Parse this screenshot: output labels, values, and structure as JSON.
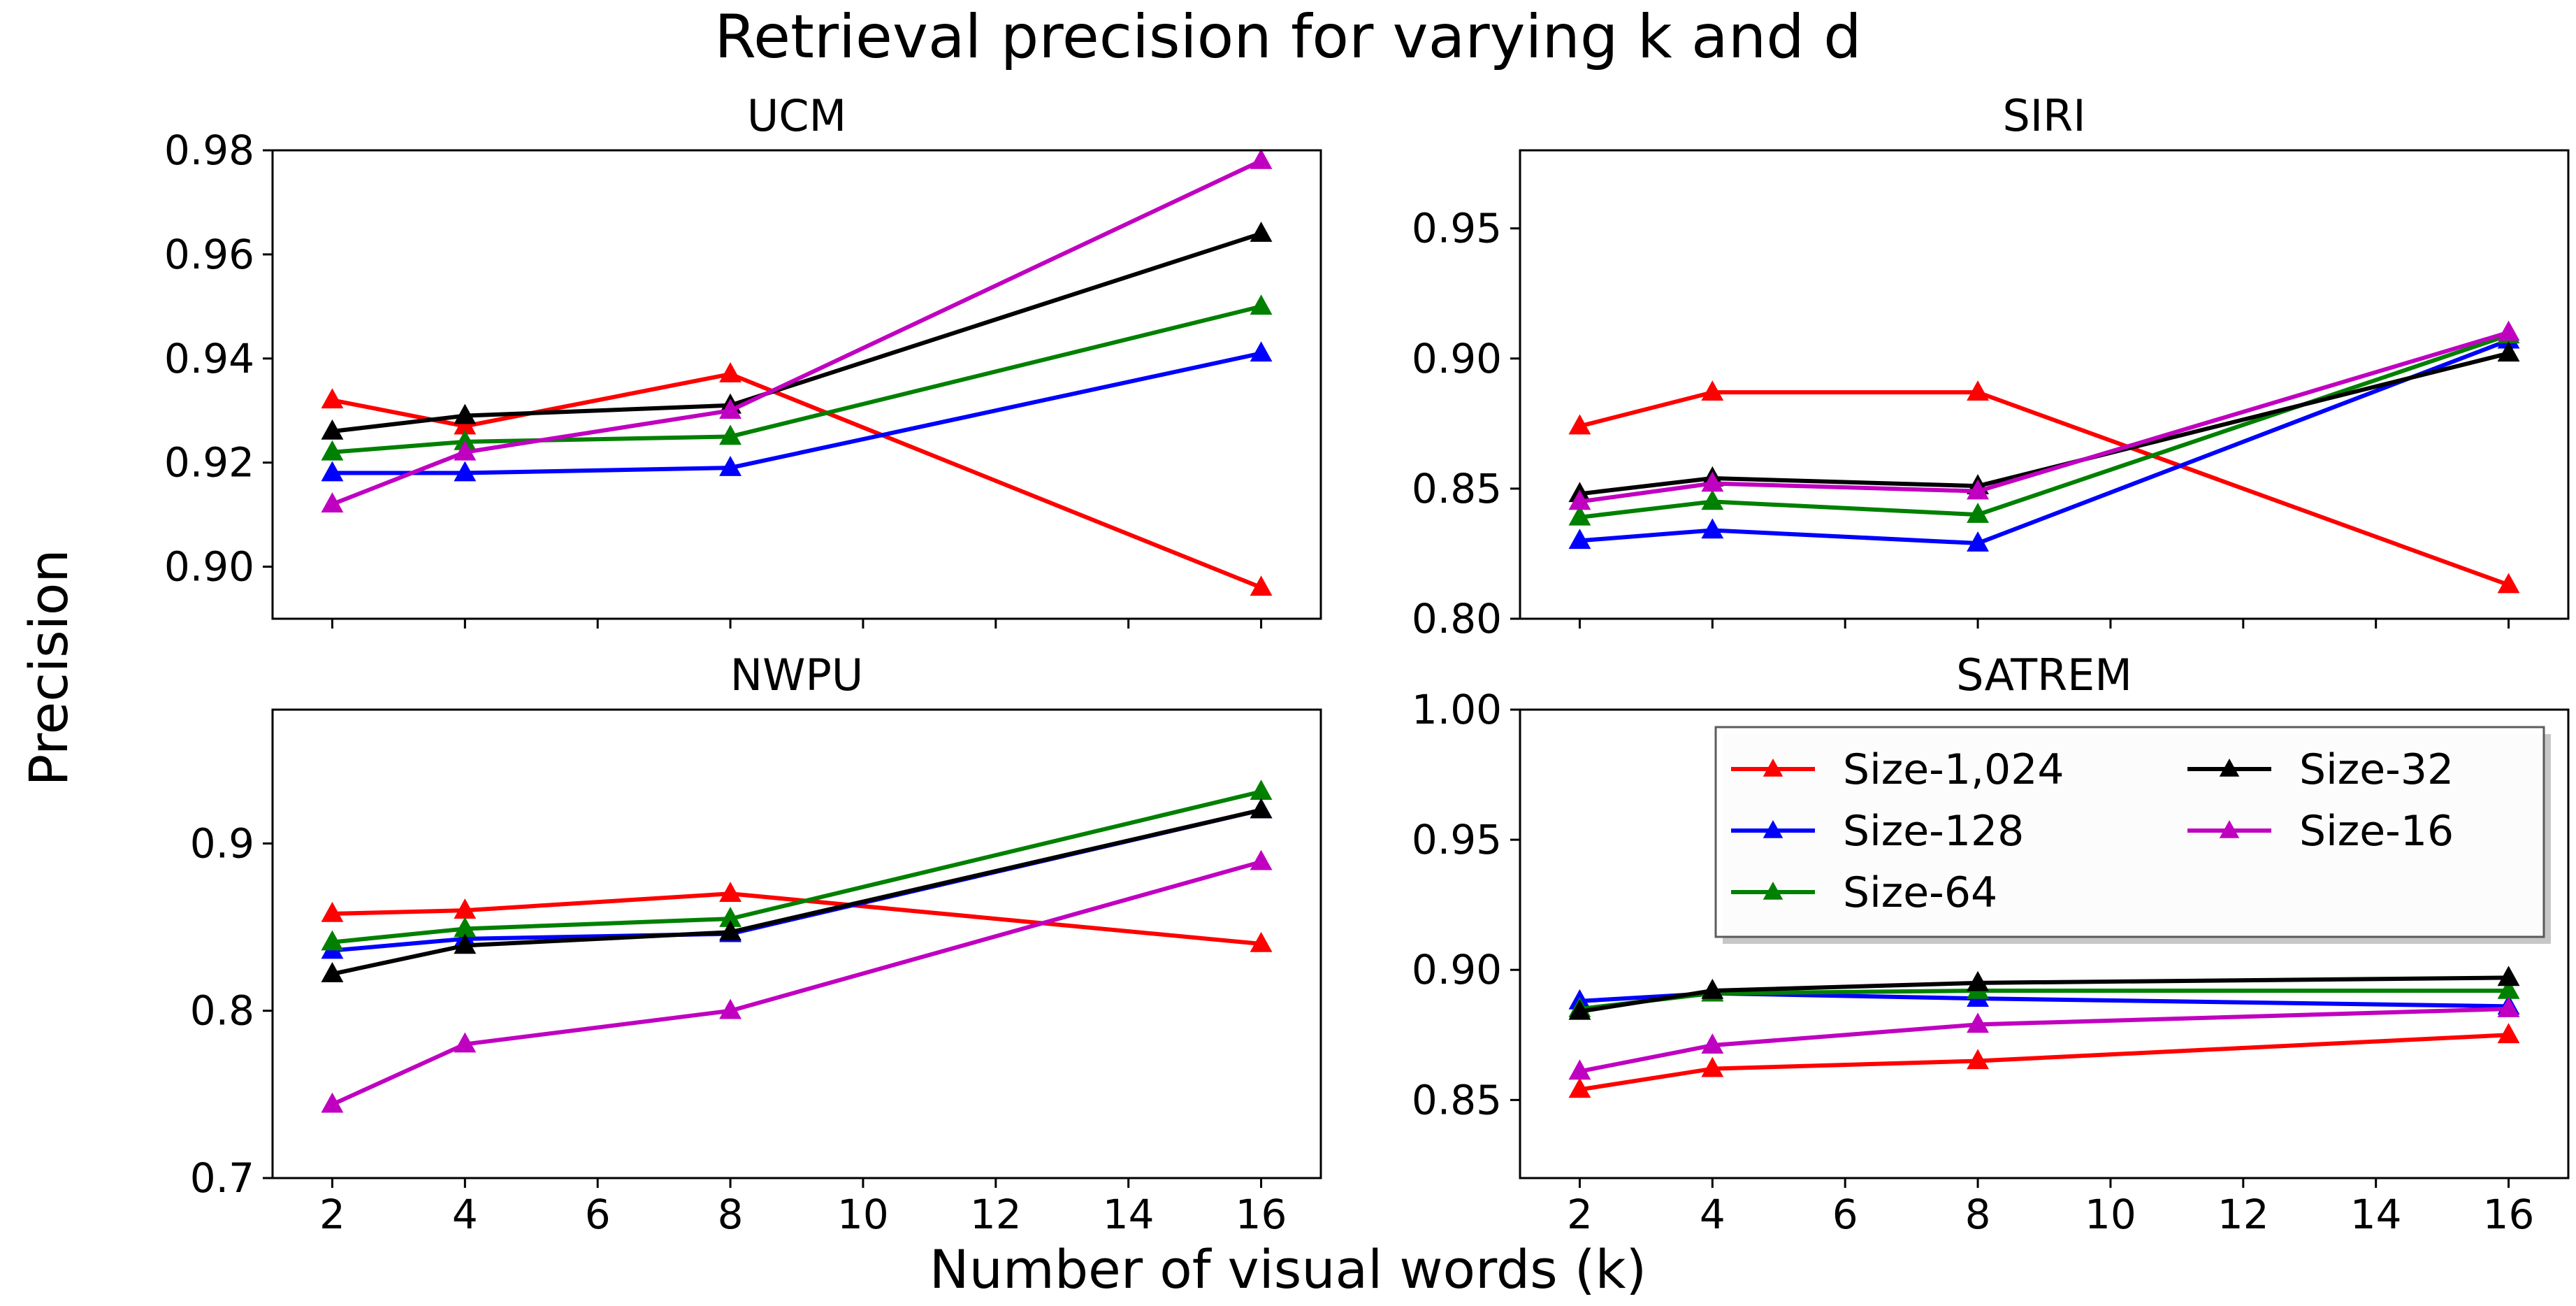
{
  "figure": {
    "suptitle": "Retrieval precision for varying k and d",
    "xlabel": "Number of visual words (k)",
    "ylabel": "Precision"
  },
  "legend": {
    "placement": "top-right of SATREM panel, 2 columns",
    "entries": [
      "Size-1,024",
      "Size-128",
      "Size-64",
      "Size-32",
      "Size-16"
    ]
  },
  "series_colors": {
    "Size-1,024": "#ff0000",
    "Size-128": "#0000ff",
    "Size-64": "#008000",
    "Size-32": "#000000",
    "Size-16": "#c000c0"
  },
  "chart_data": [
    {
      "type": "line",
      "title": "UCM",
      "xlabel": "",
      "ylabel": "",
      "x": [
        2,
        4,
        8,
        16
      ],
      "xlim": [
        1.1,
        16.9
      ],
      "ylim": [
        0.89,
        0.98
      ],
      "xticks": [
        2,
        4,
        6,
        8,
        10,
        12,
        14,
        16
      ],
      "yticks": [
        0.9,
        0.92,
        0.94,
        0.96,
        0.98
      ],
      "ytick_labels": [
        "0.90",
        "0.92",
        "0.94",
        "0.96",
        "0.98"
      ],
      "show_xtick_labels": false,
      "series": [
        {
          "name": "Size-1,024",
          "values": [
            0.932,
            0.927,
            0.937,
            0.896
          ]
        },
        {
          "name": "Size-128",
          "values": [
            0.918,
            0.918,
            0.919,
            0.941
          ]
        },
        {
          "name": "Size-64",
          "values": [
            0.922,
            0.924,
            0.925,
            0.95
          ]
        },
        {
          "name": "Size-32",
          "values": [
            0.926,
            0.929,
            0.931,
            0.964
          ]
        },
        {
          "name": "Size-16",
          "values": [
            0.912,
            0.922,
            0.93,
            0.978
          ]
        }
      ]
    },
    {
      "type": "line",
      "title": "SIRI",
      "xlabel": "",
      "ylabel": "",
      "x": [
        2,
        4,
        8,
        16
      ],
      "xlim": [
        1.1,
        16.9
      ],
      "ylim": [
        0.8,
        0.98
      ],
      "xticks": [
        2,
        4,
        6,
        8,
        10,
        12,
        14,
        16
      ],
      "yticks": [
        0.8,
        0.85,
        0.9,
        0.95
      ],
      "ytick_labels": [
        "0.80",
        "0.85",
        "0.90",
        "0.95"
      ],
      "show_xtick_labels": false,
      "series": [
        {
          "name": "Size-1,024",
          "values": [
            0.874,
            0.887,
            0.887,
            0.813
          ]
        },
        {
          "name": "Size-128",
          "values": [
            0.83,
            0.834,
            0.829,
            0.907
          ]
        },
        {
          "name": "Size-64",
          "values": [
            0.839,
            0.845,
            0.84,
            0.909
          ]
        },
        {
          "name": "Size-32",
          "values": [
            0.848,
            0.854,
            0.851,
            0.902
          ]
        },
        {
          "name": "Size-16",
          "values": [
            0.845,
            0.852,
            0.849,
            0.91
          ]
        }
      ]
    },
    {
      "type": "line",
      "title": "NWPU",
      "xlabel": "",
      "ylabel": "",
      "x": [
        2,
        4,
        8,
        16
      ],
      "xlim": [
        1.1,
        16.9
      ],
      "ylim": [
        0.7,
        0.98
      ],
      "xticks": [
        2,
        4,
        6,
        8,
        10,
        12,
        14,
        16
      ],
      "yticks": [
        0.7,
        0.8,
        0.9
      ],
      "ytick_labels": [
        "0.7",
        "0.8",
        "0.9"
      ],
      "show_xtick_labels": true,
      "series": [
        {
          "name": "Size-1,024",
          "values": [
            0.858,
            0.86,
            0.87,
            0.84
          ]
        },
        {
          "name": "Size-128",
          "values": [
            0.836,
            0.843,
            0.846,
            0.92
          ]
        },
        {
          "name": "Size-64",
          "values": [
            0.841,
            0.849,
            0.855,
            0.931
          ]
        },
        {
          "name": "Size-32",
          "values": [
            0.822,
            0.839,
            0.847,
            0.92
          ]
        },
        {
          "name": "Size-16",
          "values": [
            0.744,
            0.78,
            0.8,
            0.889
          ]
        }
      ]
    },
    {
      "type": "line",
      "title": "SATREM",
      "xlabel": "",
      "ylabel": "",
      "x": [
        2,
        4,
        8,
        16
      ],
      "xlim": [
        1.1,
        16.9
      ],
      "ylim": [
        0.82,
        1.0
      ],
      "xticks": [
        2,
        4,
        6,
        8,
        10,
        12,
        14,
        16
      ],
      "yticks": [
        0.85,
        0.9,
        0.95,
        1.0
      ],
      "ytick_labels": [
        "0.85",
        "0.90",
        "0.95",
        "1.00"
      ],
      "show_xtick_labels": true,
      "series": [
        {
          "name": "Size-1,024",
          "values": [
            0.854,
            0.862,
            0.865,
            0.875
          ]
        },
        {
          "name": "Size-128",
          "values": [
            0.888,
            0.891,
            0.889,
            0.886
          ]
        },
        {
          "name": "Size-64",
          "values": [
            0.885,
            0.891,
            0.892,
            0.892
          ]
        },
        {
          "name": "Size-32",
          "values": [
            0.884,
            0.892,
            0.895,
            0.897
          ]
        },
        {
          "name": "Size-16",
          "values": [
            0.861,
            0.871,
            0.879,
            0.885
          ]
        }
      ]
    }
  ]
}
